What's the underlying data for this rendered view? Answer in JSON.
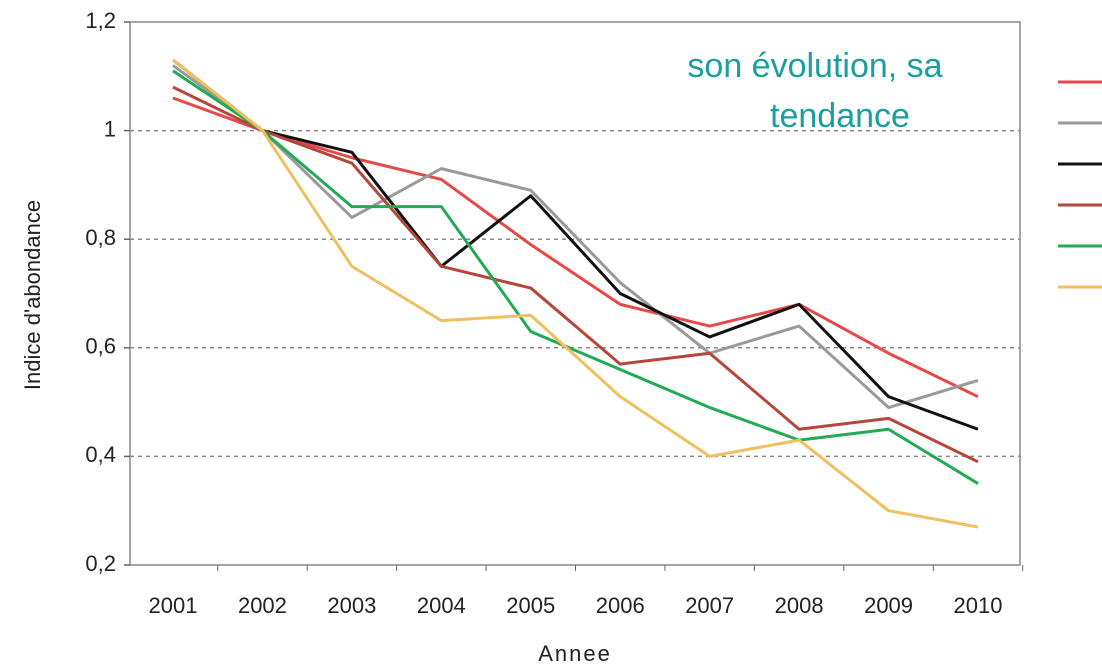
{
  "chart_data": {
    "type": "line",
    "annotation": [
      "son évolution, sa",
      "tendance"
    ],
    "xlabel": "Annee",
    "ylabel": "Indice d'abondance",
    "categories": [
      "2001",
      "2002",
      "2003",
      "2004",
      "2005",
      "2006",
      "2007",
      "2008",
      "2009",
      "2010"
    ],
    "series": [
      {
        "color": "#e84848",
        "values": [
          1.06,
          1.0,
          0.95,
          0.91,
          0.79,
          0.68,
          0.64,
          0.68,
          0.59,
          0.51
        ]
      },
      {
        "color": "#9a9a9a",
        "values": [
          1.12,
          1.0,
          0.84,
          0.93,
          0.89,
          0.72,
          0.59,
          0.64,
          0.49,
          0.54
        ]
      },
      {
        "color": "#111111",
        "values": [
          1.13,
          1.0,
          0.96,
          0.75,
          0.88,
          0.7,
          0.62,
          0.68,
          0.51,
          0.45
        ]
      },
      {
        "color": "#b5473a",
        "values": [
          1.08,
          1.0,
          0.94,
          0.75,
          0.71,
          0.57,
          0.59,
          0.45,
          0.47,
          0.39
        ]
      },
      {
        "color": "#22aa55",
        "values": [
          1.11,
          1.0,
          0.86,
          0.86,
          0.63,
          0.56,
          0.49,
          0.43,
          0.45,
          0.35
        ]
      },
      {
        "color": "#f0c060",
        "values": [
          1.13,
          1.0,
          0.75,
          0.65,
          0.66,
          0.51,
          0.4,
          0.43,
          0.3,
          0.27
        ]
      }
    ],
    "ylim": [
      0.2,
      1.2
    ],
    "yticks": [
      {
        "value": 0.2,
        "label": "0,2"
      },
      {
        "value": 0.4,
        "label": "0,4"
      },
      {
        "value": 0.6,
        "label": "0,6"
      },
      {
        "value": 0.8,
        "label": "0,8"
      },
      1,
      {
        "value": 1.2,
        "label": "1,2"
      }
    ],
    "grid": true
  }
}
